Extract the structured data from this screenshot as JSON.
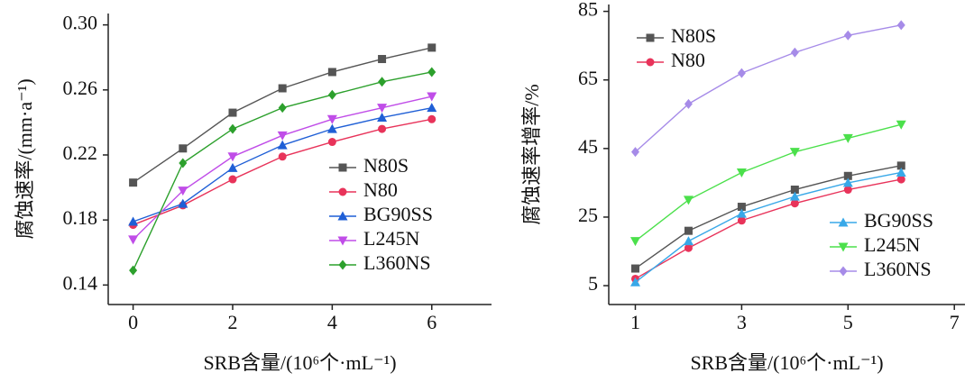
{
  "chart_data": [
    {
      "type": "line",
      "y_label": "腐蚀速率/(mm·a⁻¹)",
      "x_label": "SRB含量/(10⁶个·mL⁻¹)",
      "x": [
        0,
        1,
        2,
        3,
        4,
        5,
        6
      ],
      "xlim": [
        -0.5,
        7.2
      ],
      "xticks": [
        0,
        2,
        4,
        6
      ],
      "ylim": [
        0.128,
        0.307
      ],
      "yticks": [
        0.14,
        0.18,
        0.22,
        0.26,
        {
          "value": 0.3,
          "label": "0.30"
        }
      ],
      "legend": "lower right",
      "series": [
        {
          "name": "N80S",
          "color": "#555555",
          "marker": "square",
          "values": [
            0.203,
            0.224,
            0.246,
            0.261,
            0.271,
            0.279,
            0.286
          ]
        },
        {
          "name": "N80",
          "color": "#e8335a",
          "marker": "circle",
          "values": [
            0.177,
            0.189,
            0.205,
            0.219,
            0.228,
            0.236,
            0.242
          ]
        },
        {
          "name": "BG90SS",
          "color": "#1f5fd6",
          "marker": "triangle",
          "values": [
            0.179,
            0.19,
            0.212,
            0.226,
            0.236,
            0.243,
            0.249
          ]
        },
        {
          "name": "L245N",
          "color": "#c04de8",
          "marker": "triangle-down",
          "values": [
            0.168,
            0.198,
            0.219,
            0.232,
            0.242,
            0.249,
            0.256
          ]
        },
        {
          "name": "L360NS",
          "color": "#2ca02c",
          "marker": "diamond",
          "values": [
            0.149,
            0.215,
            0.236,
            0.249,
            0.257,
            0.265,
            0.271
          ]
        }
      ]
    },
    {
      "type": "line",
      "y_label": "腐蚀速率增率/%",
      "x_label": "SRB含量/(10⁶个·mL⁻¹)",
      "x": [
        1,
        2,
        3,
        4,
        5,
        6
      ],
      "xlim": [
        0.5,
        7.2
      ],
      "xticks": [
        1,
        3,
        5,
        7
      ],
      "ylim": [
        -0.5,
        87
      ],
      "yticks": [
        5,
        25,
        45,
        65,
        85
      ],
      "series": [
        {
          "name": "N80S",
          "color": "#555555",
          "marker": "square",
          "values": [
            10,
            21,
            28,
            33,
            37,
            40
          ]
        },
        {
          "name": "N80",
          "color": "#e8335a",
          "marker": "circle",
          "values": [
            7,
            16,
            24,
            29,
            33,
            36
          ]
        },
        {
          "name": "BG90SS",
          "color": "#38a8e8",
          "marker": "triangle",
          "values": [
            6,
            18,
            26,
            31,
            35,
            38
          ]
        },
        {
          "name": "L245N",
          "color": "#4be04b",
          "marker": "triangle-down",
          "values": [
            18,
            30,
            38,
            44,
            48,
            52
          ]
        },
        {
          "name": "L360NS",
          "color": "#a68be8",
          "marker": "diamond",
          "values": [
            44,
            58,
            67,
            73,
            78,
            81
          ]
        }
      ]
    }
  ]
}
